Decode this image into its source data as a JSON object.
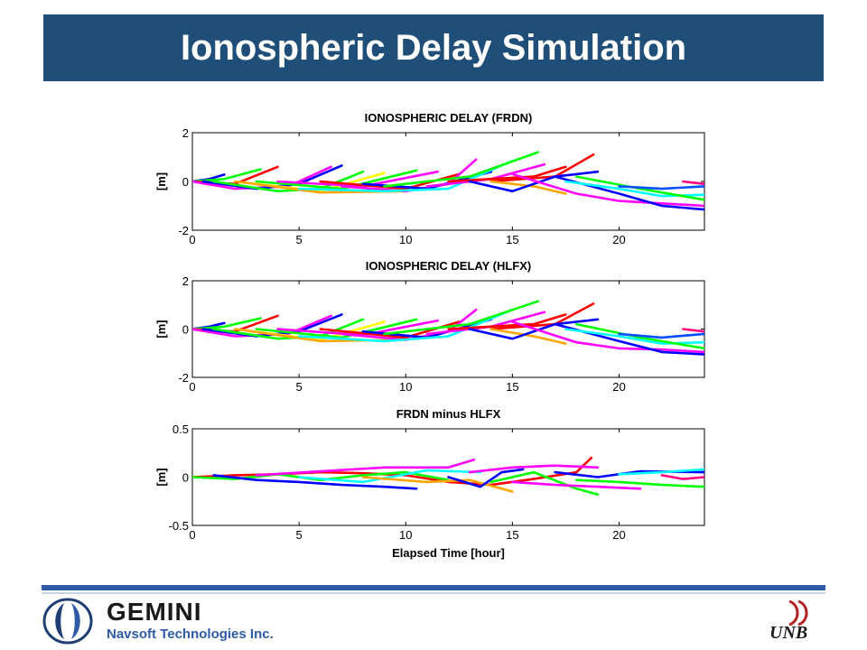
{
  "page": {
    "title": "Ionospheric Delay Simulation"
  },
  "footer": {
    "company_name": "GEMINI",
    "company_sub": "Navsoft Technologies Inc.",
    "university": "UNB"
  },
  "colors": {
    "title_bar": "#1f4e79",
    "footer_rule": "#2e5aa8",
    "series_palette": [
      "#0000ff",
      "#00ff00",
      "#ff00ff",
      "#ff0000",
      "#00ffff",
      "#ffa500",
      "#ffff00",
      "#0050ff",
      "#7fff00",
      "#ff0080"
    ]
  },
  "chart_data": [
    {
      "type": "line",
      "title": "IONOSPHERIC DELAY (FRDN)",
      "xlabel": "",
      "ylabel": "[m]",
      "xlim": [
        0,
        24
      ],
      "ylim": [
        -2,
        2
      ],
      "xticks": [
        0,
        5,
        10,
        15,
        20
      ],
      "yticks": [
        -2,
        0,
        2
      ],
      "grid": false,
      "series": [
        {
          "color": "#0000ff",
          "x": [
            0,
            0.8,
            1.5
          ],
          "y": [
            0,
            0.1,
            0.28
          ]
        },
        {
          "color": "#00ff00",
          "x": [
            0,
            1.5,
            3.2
          ],
          "y": [
            0,
            0.1,
            0.5
          ]
        },
        {
          "color": "#ff0000",
          "x": [
            0,
            2,
            4
          ],
          "y": [
            0,
            -0.1,
            0.6
          ]
        },
        {
          "color": "#ff00ff",
          "x": [
            0,
            2,
            4.5,
            6.5
          ],
          "y": [
            0,
            -0.3,
            -0.2,
            0.6
          ]
        },
        {
          "color": "#0000ff",
          "x": [
            0.5,
            3,
            5,
            7
          ],
          "y": [
            0,
            -0.3,
            -0.1,
            0.65
          ]
        },
        {
          "color": "#00ff00",
          "x": [
            1,
            4,
            6,
            8
          ],
          "y": [
            0,
            -0.4,
            -0.3,
            0.4
          ]
        },
        {
          "color": "#ffff00",
          "x": [
            2,
            6,
            9
          ],
          "y": [
            0,
            -0.4,
            0.35
          ]
        },
        {
          "color": "#00ff00",
          "x": [
            3,
            7,
            10.5
          ],
          "y": [
            0,
            -0.3,
            0.45
          ]
        },
        {
          "color": "#ff00ff",
          "x": [
            4,
            8,
            11.5
          ],
          "y": [
            0,
            -0.2,
            0.4
          ]
        },
        {
          "color": "#ffa500",
          "x": [
            2,
            6,
            10,
            12
          ],
          "y": [
            0,
            -0.45,
            -0.4,
            -0.1
          ]
        },
        {
          "color": "#ff0000",
          "x": [
            6,
            10,
            12.5
          ],
          "y": [
            0,
            -0.3,
            0.3
          ]
        },
        {
          "color": "#ff00ff",
          "x": [
            7,
            10,
            12,
            13.3
          ],
          "y": [
            -0.2,
            -0.4,
            -0.1,
            0.9
          ]
        },
        {
          "color": "#0000ff",
          "x": [
            8,
            11,
            14
          ],
          "y": [
            -0.1,
            -0.3,
            0.4
          ]
        },
        {
          "color": "#00ffff",
          "x": [
            5,
            9,
            12,
            15
          ],
          "y": [
            -0.3,
            -0.4,
            -0.3,
            0.85
          ]
        },
        {
          "color": "#00ff00",
          "x": [
            9,
            13,
            16.2
          ],
          "y": [
            -0.2,
            0.2,
            1.2
          ]
        },
        {
          "color": "#ff00ff",
          "x": [
            11,
            14,
            16.5
          ],
          "y": [
            -0.2,
            0.1,
            0.7
          ]
        },
        {
          "color": "#ff0000",
          "x": [
            12,
            16,
            17.5
          ],
          "y": [
            0,
            0.2,
            0.6
          ]
        },
        {
          "color": "#ff0000",
          "x": [
            14,
            17,
            18.8
          ],
          "y": [
            0,
            0.2,
            1.1
          ]
        },
        {
          "color": "#ffa500",
          "x": [
            14,
            16,
            17.5
          ],
          "y": [
            0,
            -0.2,
            -0.5
          ]
        },
        {
          "color": "#0000ff",
          "x": [
            13,
            15,
            17,
            19
          ],
          "y": [
            0,
            -0.4,
            0.2,
            0.4
          ]
        },
        {
          "color": "#ff00ff",
          "x": [
            15,
            18,
            20,
            22,
            24
          ],
          "y": [
            0.3,
            -0.5,
            -0.8,
            -0.9,
            -1.0
          ]
        },
        {
          "color": "#0000ff",
          "x": [
            17,
            20,
            22,
            24
          ],
          "y": [
            0.2,
            -0.5,
            -1.0,
            -1.15
          ]
        },
        {
          "color": "#00ffff",
          "x": [
            17.5,
            20,
            22,
            24
          ],
          "y": [
            0,
            -0.3,
            -0.6,
            -0.55
          ]
        },
        {
          "color": "#00ff00",
          "x": [
            18,
            21,
            24
          ],
          "y": [
            0.2,
            -0.3,
            -0.75
          ]
        },
        {
          "color": "#0050ff",
          "x": [
            20,
            22,
            24
          ],
          "y": [
            -0.2,
            -0.3,
            -0.2
          ]
        },
        {
          "color": "#ff0080",
          "x": [
            23,
            24
          ],
          "y": [
            0,
            -0.1
          ]
        }
      ]
    },
    {
      "type": "line",
      "title": "IONOSPHERIC DELAY (HLFX)",
      "xlabel": "",
      "ylabel": "[m]",
      "xlim": [
        0,
        24
      ],
      "ylim": [
        -2,
        2
      ],
      "xticks": [
        0,
        5,
        10,
        15,
        20
      ],
      "yticks": [
        -2,
        0,
        2
      ],
      "grid": false,
      "series": [
        {
          "color": "#0000ff",
          "x": [
            0,
            0.8,
            1.5
          ],
          "y": [
            0,
            0.1,
            0.25
          ]
        },
        {
          "color": "#00ff00",
          "x": [
            0,
            1.5,
            3.2
          ],
          "y": [
            0,
            0.1,
            0.45
          ]
        },
        {
          "color": "#ff0000",
          "x": [
            0,
            2,
            4
          ],
          "y": [
            0,
            -0.1,
            0.55
          ]
        },
        {
          "color": "#ff00ff",
          "x": [
            0,
            2,
            4.5,
            6.5
          ],
          "y": [
            0,
            -0.3,
            -0.2,
            0.55
          ]
        },
        {
          "color": "#0000ff",
          "x": [
            0.5,
            3,
            5,
            7
          ],
          "y": [
            0,
            -0.3,
            -0.1,
            0.6
          ]
        },
        {
          "color": "#00ff00",
          "x": [
            1,
            4,
            6,
            8
          ],
          "y": [
            0,
            -0.4,
            -0.3,
            0.4
          ]
        },
        {
          "color": "#ffff00",
          "x": [
            2,
            6,
            9
          ],
          "y": [
            0,
            -0.45,
            0.3
          ]
        },
        {
          "color": "#00ff00",
          "x": [
            3,
            7,
            10.5
          ],
          "y": [
            0,
            -0.35,
            0.4
          ]
        },
        {
          "color": "#ff00ff",
          "x": [
            4,
            8,
            11.5
          ],
          "y": [
            0,
            -0.25,
            0.35
          ]
        },
        {
          "color": "#ffa500",
          "x": [
            2,
            6,
            10,
            12
          ],
          "y": [
            0,
            -0.5,
            -0.45,
            -0.1
          ]
        },
        {
          "color": "#ff0000",
          "x": [
            6,
            10,
            12.5
          ],
          "y": [
            0,
            -0.35,
            0.3
          ]
        },
        {
          "color": "#ff00ff",
          "x": [
            7,
            10,
            12,
            13.3
          ],
          "y": [
            -0.2,
            -0.45,
            -0.1,
            0.8
          ]
        },
        {
          "color": "#0000ff",
          "x": [
            8,
            11,
            14
          ],
          "y": [
            -0.1,
            -0.35,
            0.4
          ]
        },
        {
          "color": "#00ffff",
          "x": [
            5,
            9,
            12,
            15
          ],
          "y": [
            -0.3,
            -0.5,
            -0.3,
            0.8
          ]
        },
        {
          "color": "#00ff00",
          "x": [
            9,
            13,
            16.2
          ],
          "y": [
            -0.2,
            0.2,
            1.15
          ]
        },
        {
          "color": "#ff00ff",
          "x": [
            11,
            14,
            16.5
          ],
          "y": [
            -0.2,
            0.1,
            0.7
          ]
        },
        {
          "color": "#ff0000",
          "x": [
            12,
            16,
            17.5
          ],
          "y": [
            0,
            0.2,
            0.6
          ]
        },
        {
          "color": "#ff0000",
          "x": [
            14,
            17,
            18.8
          ],
          "y": [
            0,
            0.2,
            1.05
          ]
        },
        {
          "color": "#ffa500",
          "x": [
            14,
            16,
            17.5
          ],
          "y": [
            0,
            -0.3,
            -0.6
          ]
        },
        {
          "color": "#0000ff",
          "x": [
            13,
            15,
            17,
            19
          ],
          "y": [
            0,
            -0.4,
            0.2,
            0.4
          ]
        },
        {
          "color": "#ff00ff",
          "x": [
            15,
            18,
            20,
            22,
            24
          ],
          "y": [
            0.3,
            -0.55,
            -0.8,
            -0.85,
            -0.95
          ]
        },
        {
          "color": "#0000ff",
          "x": [
            17,
            20,
            22,
            24
          ],
          "y": [
            0.2,
            -0.5,
            -0.95,
            -1.05
          ]
        },
        {
          "color": "#00ffff",
          "x": [
            17.5,
            20,
            22,
            24
          ],
          "y": [
            0,
            -0.3,
            -0.6,
            -0.55
          ]
        },
        {
          "color": "#00ff00",
          "x": [
            18,
            21,
            24
          ],
          "y": [
            0.2,
            -0.35,
            -0.8
          ]
        },
        {
          "color": "#0050ff",
          "x": [
            20,
            22,
            24
          ],
          "y": [
            -0.2,
            -0.35,
            -0.2
          ]
        },
        {
          "color": "#ff0080",
          "x": [
            23,
            24
          ],
          "y": [
            0,
            -0.1
          ]
        }
      ]
    },
    {
      "type": "line",
      "title": "FRDN minus HLFX",
      "xlabel": "Elapsed Time [hour]",
      "ylabel": "[m]",
      "xlim": [
        0,
        24
      ],
      "ylim": [
        -0.5,
        0.5
      ],
      "xticks": [
        0,
        5,
        10,
        15,
        20
      ],
      "yticks": [
        -0.5,
        0,
        0.5
      ],
      "grid": false,
      "series": [
        {
          "color": "#ff0000",
          "x": [
            0,
            2,
            4,
            6,
            8,
            10,
            12,
            14,
            16,
            18,
            18.7
          ],
          "y": [
            0,
            0.02,
            0.03,
            0.05,
            0.04,
            0.02,
            -0.05,
            -0.08,
            -0.02,
            0.05,
            0.2
          ]
        },
        {
          "color": "#00ff00",
          "x": [
            0,
            2,
            4,
            6,
            8,
            10,
            12
          ],
          "y": [
            0,
            -0.02,
            0.03,
            -0.03,
            0.02,
            0.05,
            -0.03
          ]
        },
        {
          "color": "#0000ff",
          "x": [
            1,
            3,
            5,
            7,
            9,
            10.5
          ],
          "y": [
            0.02,
            -0.03,
            -0.05,
            -0.08,
            -0.1,
            -0.12
          ]
        },
        {
          "color": "#ff00ff",
          "x": [
            3,
            6,
            9,
            12,
            13.2
          ],
          "y": [
            0.02,
            0.06,
            0.1,
            0.1,
            0.18
          ]
        },
        {
          "color": "#00ffff",
          "x": [
            5,
            8,
            11,
            13.5
          ],
          "y": [
            0,
            -0.05,
            0.07,
            0.05
          ]
        },
        {
          "color": "#ffa500",
          "x": [
            8,
            11,
            13,
            15
          ],
          "y": [
            0,
            -0.05,
            -0.03,
            -0.15
          ]
        },
        {
          "color": "#0000ff",
          "x": [
            12,
            13.5,
            14.5,
            15.5
          ],
          "y": [
            0,
            -0.1,
            0.05,
            0.08
          ]
        },
        {
          "color": "#ff00ff",
          "x": [
            13,
            15,
            17,
            19
          ],
          "y": [
            0.05,
            0.1,
            0.12,
            0.1
          ]
        },
        {
          "color": "#00ff00",
          "x": [
            14,
            16,
            18,
            19
          ],
          "y": [
            -0.05,
            0.05,
            -0.12,
            -0.18
          ]
        },
        {
          "color": "#ff00ff",
          "x": [
            15,
            17,
            19,
            21
          ],
          "y": [
            -0.05,
            -0.08,
            -0.1,
            -0.12
          ]
        },
        {
          "color": "#0000ff",
          "x": [
            17,
            19,
            21,
            24
          ],
          "y": [
            0.05,
            0,
            0.06,
            0.05
          ]
        },
        {
          "color": "#00ff00",
          "x": [
            18,
            20,
            22,
            24
          ],
          "y": [
            -0.03,
            -0.05,
            -0.08,
            -0.1
          ]
        },
        {
          "color": "#00ffff",
          "x": [
            20,
            22,
            24
          ],
          "y": [
            0.03,
            0.05,
            0.08
          ]
        },
        {
          "color": "#ff0080",
          "x": [
            22,
            23,
            24
          ],
          "y": [
            0.02,
            -0.02,
            0
          ]
        }
      ]
    }
  ]
}
